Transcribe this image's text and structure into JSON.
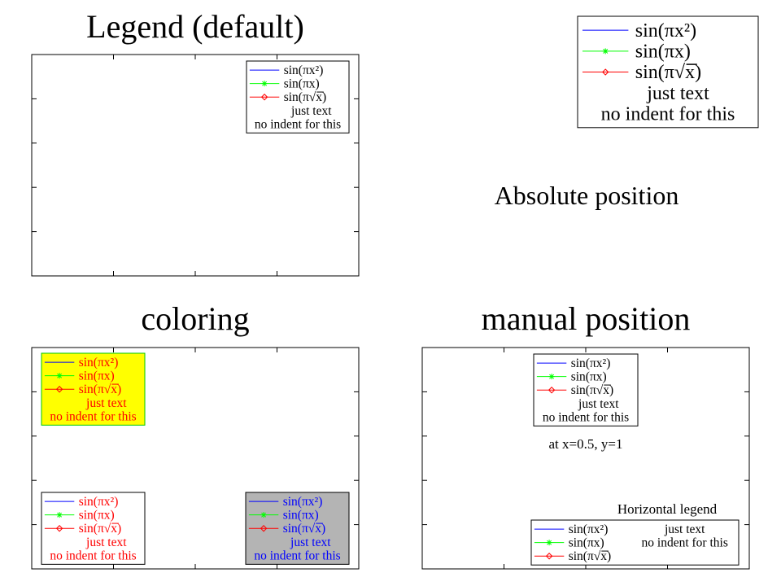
{
  "chart_data": [
    {
      "type": "line",
      "title": "Legend (default)",
      "legend": {
        "placement": "top-right",
        "entries": [
          "sin(πx²)",
          "sin(πx)",
          "sin(π√x)",
          "just text",
          "no indent for this"
        ]
      }
    },
    {
      "type": "line",
      "title": "",
      "annotation": "Absolute position",
      "legend": {
        "placement": "absolute",
        "entries": [
          "sin(πx²)",
          "sin(πx)",
          "sin(π√x)",
          "just text",
          "no indent for this"
        ]
      }
    },
    {
      "type": "line",
      "title": "coloring",
      "legends": [
        {
          "placement": "top-left",
          "background": "#ffff00",
          "border": "#00c800",
          "text_color": "#ff0000",
          "entries": [
            "sin(πx²)",
            "sin(πx)",
            "sin(π√x)",
            "just text",
            "no indent for this"
          ]
        },
        {
          "placement": "bottom-left",
          "background": "#ffffff",
          "border": "#000000",
          "text_color": "#ff0000",
          "entries": [
            "sin(πx²)",
            "sin(πx)",
            "sin(π√x)",
            "just text",
            "no indent for this"
          ]
        },
        {
          "placement": "bottom-right",
          "background": "#b4b4b4",
          "border": "#000000",
          "text_color": "#0000ff",
          "entries": [
            "sin(πx²)",
            "sin(πx)",
            "sin(π√x)",
            "just text",
            "no indent for this"
          ]
        }
      ]
    },
    {
      "type": "line",
      "title": "manual position",
      "legends": [
        {
          "placement": "top-center",
          "position": {
            "x": 0.5,
            "y": 1
          },
          "caption": "at x=0.5, y=1",
          "entries": [
            "sin(πx²)",
            "sin(πx)",
            "sin(π√x)",
            "just text",
            "no indent for this"
          ]
        },
        {
          "placement": "bottom-right",
          "orientation": "horizontal",
          "caption": "Horizontal legend",
          "entries": [
            "sin(πx²)",
            "sin(πx)",
            "sin(π√x)",
            "just text",
            "no indent for this"
          ]
        }
      ]
    }
  ],
  "series_colors": {
    "sin_pi_x2": "#0000ff",
    "sin_pi_x": "#00ff00",
    "sin_pi_sqrt_x": "#ff0000"
  },
  "series_markers": {
    "sin_pi_x2": "none",
    "sin_pi_x": "asterisk",
    "sin_pi_sqrt_x": "diamond"
  }
}
